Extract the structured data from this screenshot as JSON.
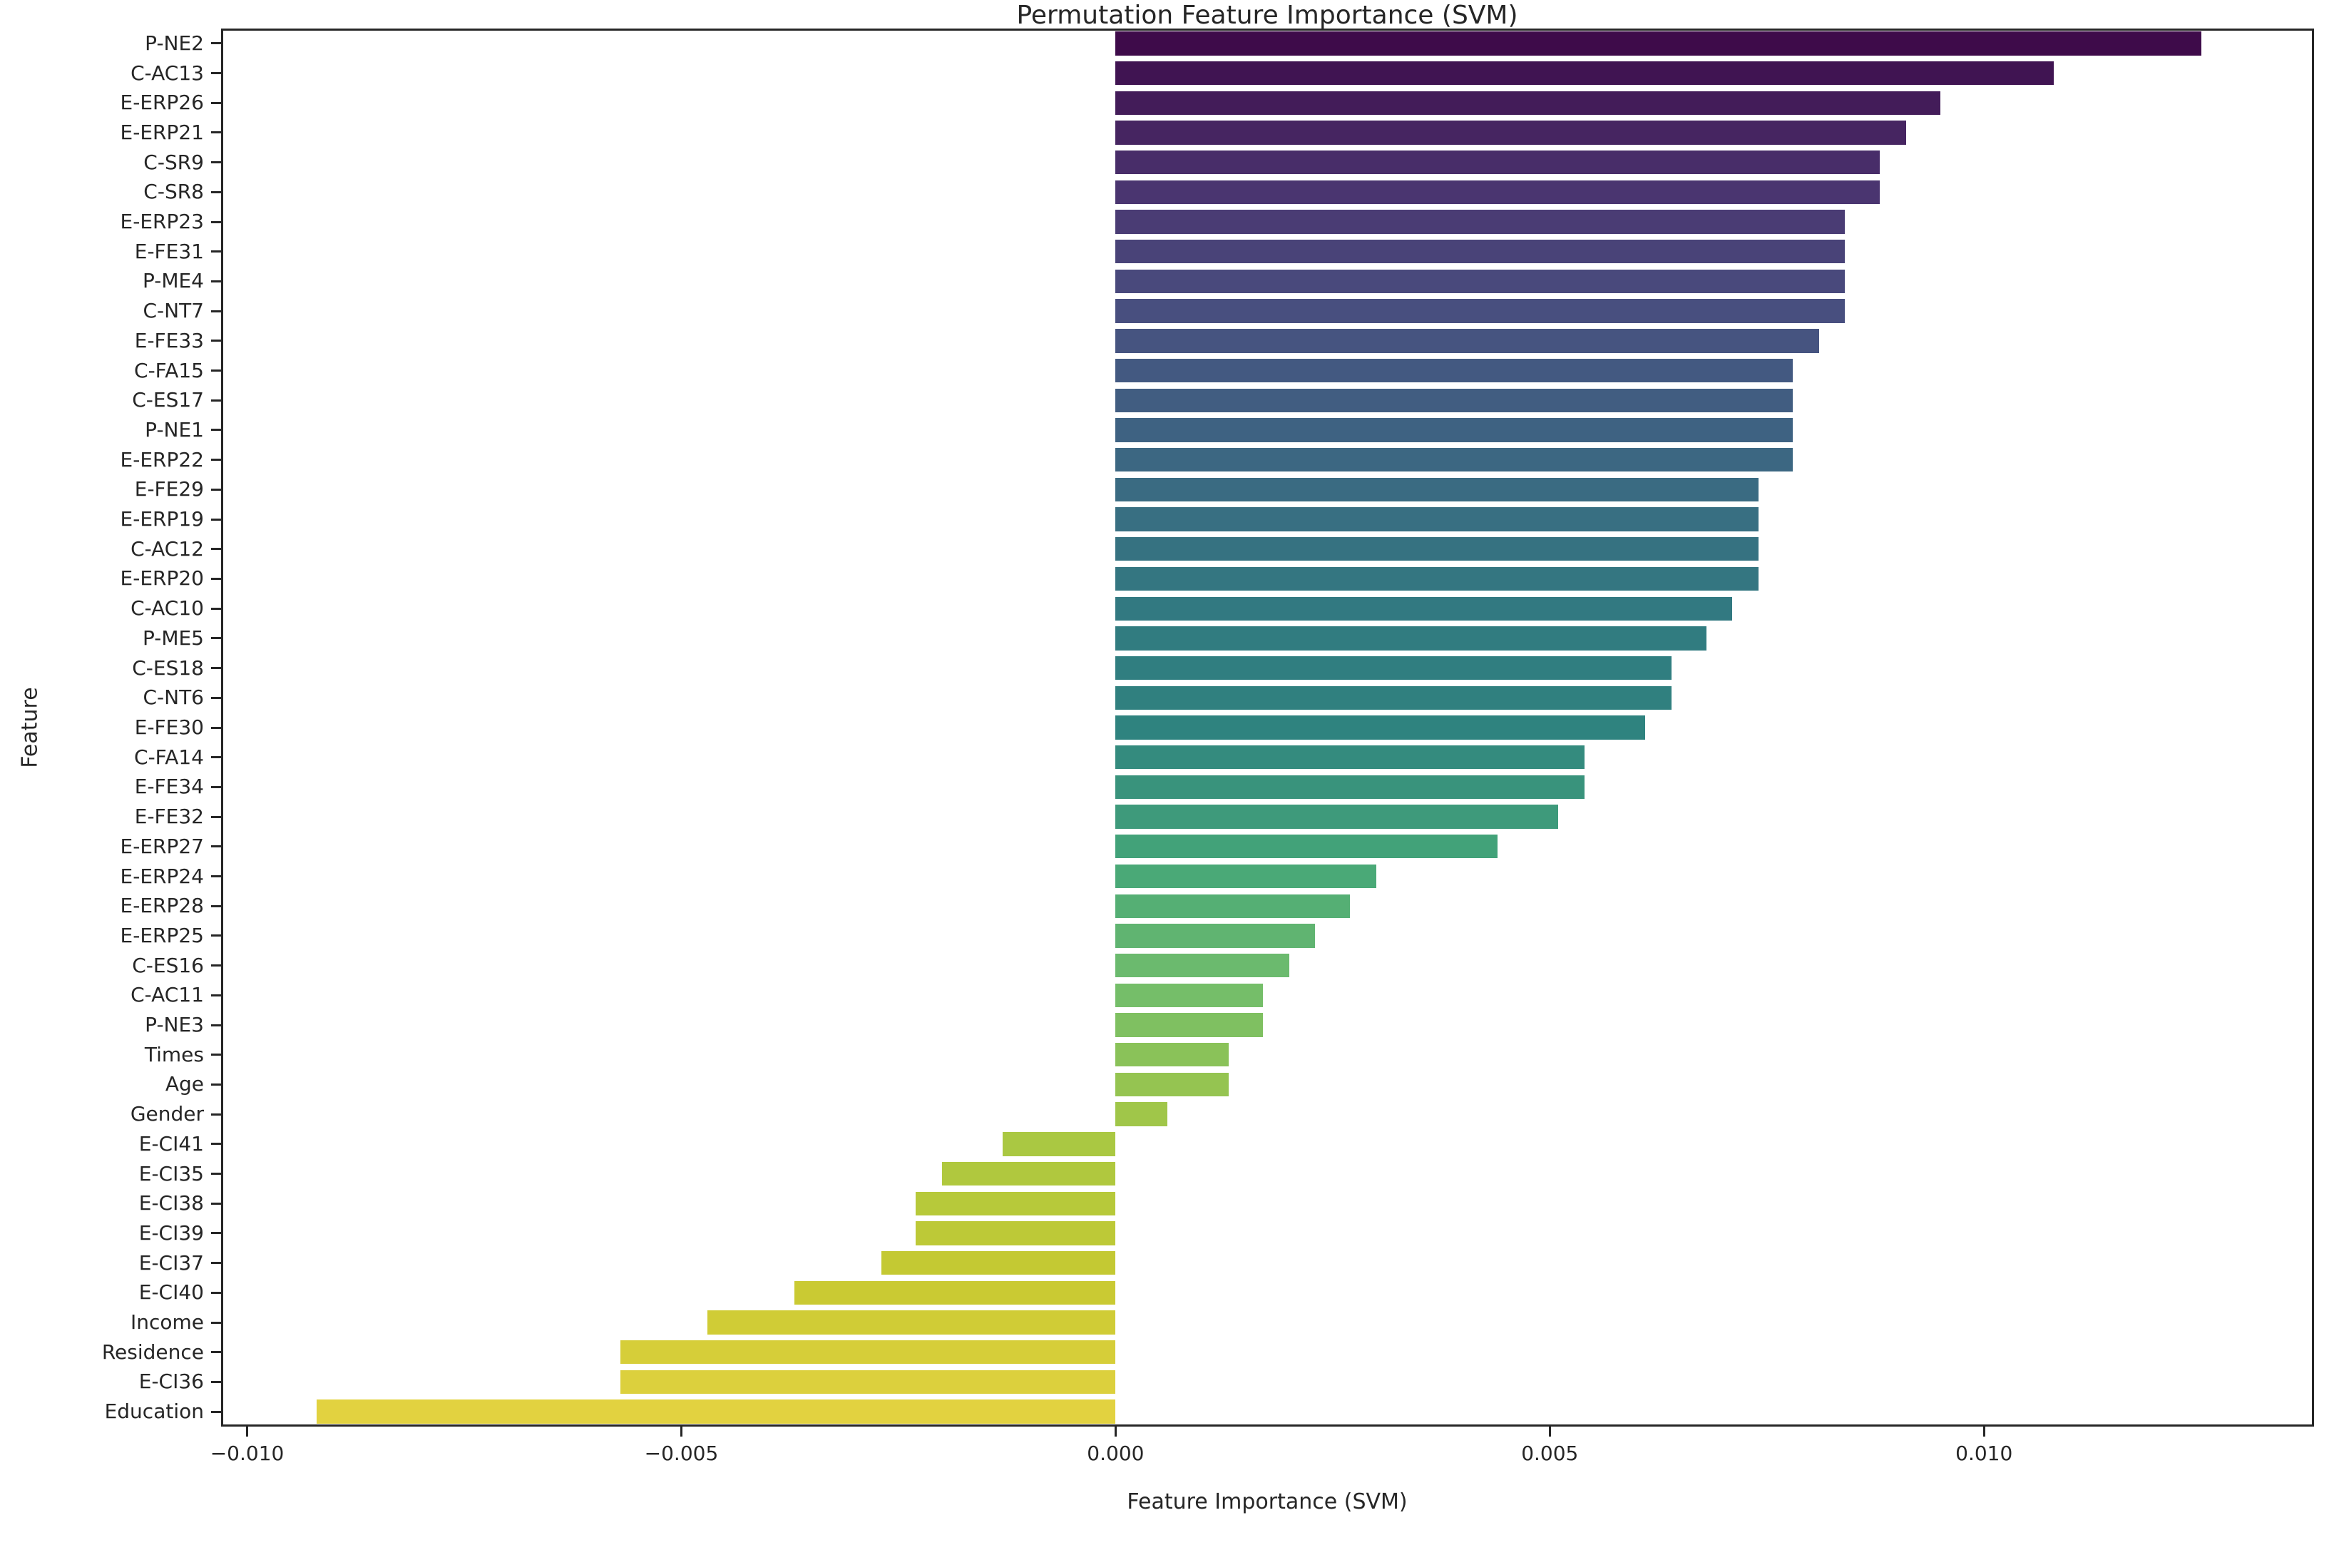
{
  "chart_data": {
    "type": "bar",
    "orientation": "horizontal",
    "title": "Permutation Feature Importance (SVM)",
    "xlabel": "Feature Importance (SVM)",
    "ylabel": "Feature",
    "grid": false,
    "legend": false,
    "xlim": [
      -0.0103,
      0.0138
    ],
    "xticks": [
      -0.01,
      -0.005,
      0.0,
      0.005,
      0.01
    ],
    "xtick_labels": [
      "−0.010",
      "−0.005",
      "0.000",
      "0.005",
      "0.010"
    ],
    "categories": [
      "P-NE2",
      "C-AC13",
      "E-ERP26",
      "E-ERP21",
      "C-SR9",
      "C-SR8",
      "E-ERP23",
      "E-FE31",
      "P-ME4",
      "C-NT7",
      "E-FE33",
      "C-FA15",
      "C-ES17",
      "P-NE1",
      "E-ERP22",
      "E-FE29",
      "E-ERP19",
      "C-AC12",
      "E-ERP20",
      "C-AC10",
      "P-ME5",
      "C-ES18",
      "C-NT6",
      "E-FE30",
      "C-FA14",
      "E-FE34",
      "E-FE32",
      "E-ERP27",
      "E-ERP24",
      "E-ERP28",
      "E-ERP25",
      "C-ES16",
      "C-AC11",
      "P-NE3",
      "Times",
      "Age",
      "Gender",
      "E-CI41",
      "E-CI35",
      "E-CI38",
      "E-CI39",
      "E-CI37",
      "E-CI40",
      "Income",
      "Residence",
      "E-CI36",
      "Education"
    ],
    "values": [
      0.0125,
      0.0108,
      0.0095,
      0.0091,
      0.0088,
      0.0088,
      0.0084,
      0.0084,
      0.0084,
      0.0084,
      0.0081,
      0.0078,
      0.0078,
      0.0078,
      0.0078,
      0.0074,
      0.0074,
      0.0074,
      0.0074,
      0.0071,
      0.0068,
      0.0064,
      0.0064,
      0.0061,
      0.0054,
      0.0054,
      0.0051,
      0.0044,
      0.003,
      0.0027,
      0.0023,
      0.002,
      0.0017,
      0.0017,
      0.0013,
      0.0013,
      0.0006,
      -0.0013,
      -0.002,
      -0.0023,
      -0.0023,
      -0.0027,
      -0.0037,
      -0.0047,
      -0.0057,
      -0.0057,
      -0.0092
    ],
    "palette": "viridis",
    "palette_anchors": [
      "#440154",
      "#482878",
      "#3e4a89",
      "#31688e",
      "#26828e",
      "#21918c",
      "#35b779",
      "#6dcd59",
      "#b4de2c",
      "#dfe318",
      "#fde725"
    ],
    "bar_desaturation": 0.75,
    "spine_color": "#262626",
    "background_color": "#ffffff"
  }
}
